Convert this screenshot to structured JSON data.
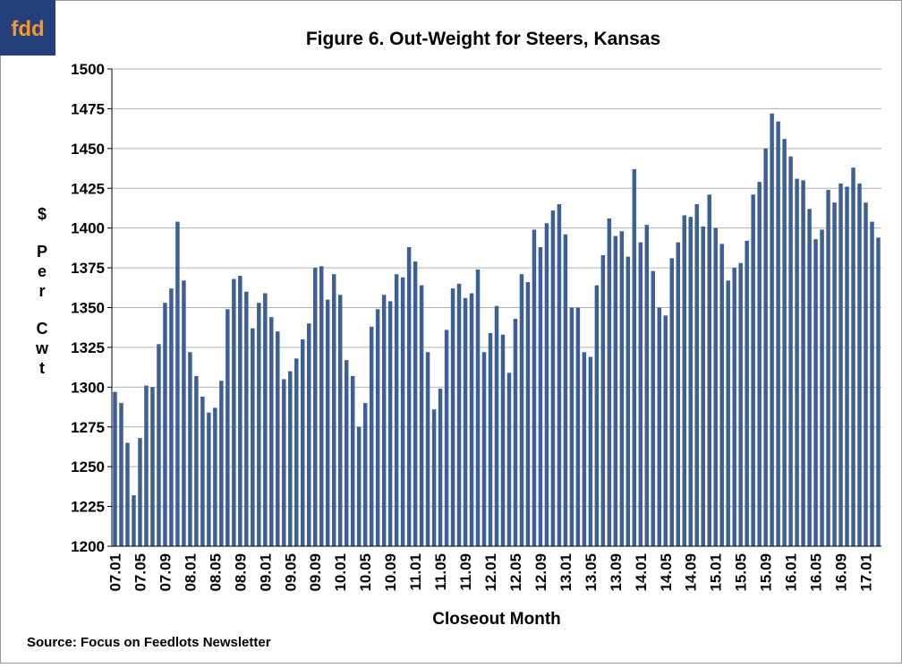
{
  "logo": "fdd",
  "source": "Source:  Focus on Feedlots Newsletter",
  "chart_data": {
    "type": "bar",
    "title": "Figure 6.  Out-Weight for Steers, Kansas",
    "x_label": "Closeout Month",
    "y_label_lines": [
      "$",
      "Per",
      "Cwt"
    ],
    "color": "#3e5f92",
    "grid": true,
    "ylim": [
      1200,
      1500
    ],
    "yticks": [
      1200,
      1225,
      1250,
      1275,
      1300,
      1325,
      1350,
      1375,
      1400,
      1425,
      1450,
      1475,
      1500
    ],
    "categories": [
      "07.01",
      null,
      null,
      null,
      "07.05",
      null,
      null,
      null,
      "07.09",
      null,
      null,
      null,
      "08.01",
      null,
      null,
      null,
      "08.05",
      null,
      null,
      null,
      "08.09",
      null,
      null,
      null,
      "09.01",
      null,
      null,
      null,
      "09.05",
      null,
      null,
      null,
      "09.09",
      null,
      null,
      null,
      "10.01",
      null,
      null,
      null,
      "10.05",
      null,
      null,
      null,
      "10.09",
      null,
      null,
      null,
      "11.01",
      null,
      null,
      null,
      "11.05",
      null,
      null,
      null,
      "11.09",
      null,
      null,
      null,
      "12.01",
      null,
      null,
      null,
      "12.05",
      null,
      null,
      null,
      "12.09",
      null,
      null,
      null,
      "13.01",
      null,
      null,
      null,
      "13.05",
      null,
      null,
      null,
      "13.09",
      null,
      null,
      null,
      "14.01",
      null,
      null,
      null,
      "14.05",
      null,
      null,
      null,
      "14.09",
      null,
      null,
      null,
      "15.01",
      null,
      null,
      null,
      "15.05",
      null,
      null,
      null,
      "15.09",
      null,
      null,
      null,
      "16.01",
      null,
      null,
      null,
      "16.05",
      null,
      null,
      null,
      "16.09",
      null,
      null,
      null,
      "17.01",
      null,
      null
    ],
    "values": [
      1297,
      1290,
      1265,
      1232,
      1268,
      1301,
      1300,
      1327,
      1353,
      1362,
      1404,
      1367,
      1322,
      1307,
      1294,
      1284,
      1287,
      1304,
      1349,
      1368,
      1370,
      1360,
      1337,
      1353,
      1359,
      1344,
      1335,
      1305,
      1310,
      1318,
      1330,
      1340,
      1375,
      1376,
      1355,
      1371,
      1358,
      1317,
      1307,
      1275,
      1290,
      1338,
      1349,
      1358,
      1354,
      1371,
      1369,
      1388,
      1379,
      1364,
      1322,
      1286,
      1299,
      1336,
      1362,
      1365,
      1356,
      1359,
      1374,
      1322,
      1334,
      1351,
      1333,
      1309,
      1343,
      1371,
      1366,
      1399,
      1388,
      1403,
      1411,
      1415,
      1396,
      1350,
      1350,
      1322,
      1319,
      1364,
      1383,
      1406,
      1395,
      1398,
      1382,
      1437,
      1391,
      1402,
      1373,
      1350,
      1345,
      1381,
      1391,
      1408,
      1407,
      1415,
      1401,
      1421,
      1400,
      1390,
      1367,
      1375,
      1378,
      1392,
      1421,
      1429,
      1450,
      1472,
      1467,
      1456,
      1445,
      1431,
      1430,
      1412,
      1393,
      1399,
      1424,
      1416,
      1428,
      1426,
      1438,
      1428,
      1416,
      1404,
      1394
    ]
  }
}
